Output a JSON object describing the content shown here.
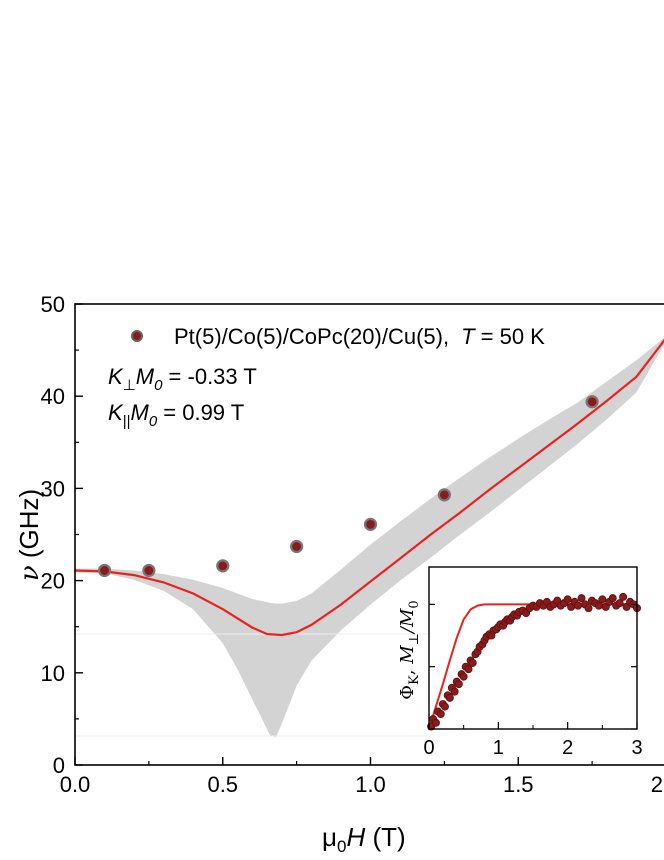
{
  "chart_data": [
    {
      "type": "scatter",
      "xlabel": {
        "main": "μ",
        "sub": "0",
        "italic": "H",
        "unit": " (T)"
      },
      "ylabel": {
        "italic": "ν",
        "unit": " (GHz)"
      },
      "xlim": [
        0.0,
        2.0
      ],
      "ylim": [
        0,
        50
      ],
      "xticks": [
        0.0,
        0.5,
        1.0,
        1.5,
        2.0
      ],
      "xtick_labels": [
        "0.0",
        "0.5",
        "1.0",
        "1.5",
        "2.0"
      ],
      "yticks": [
        0,
        10,
        20,
        30,
        40,
        50
      ],
      "ytick_labels": [
        "0",
        "10",
        "20",
        "30",
        "40",
        "50"
      ],
      "legend": {
        "sample": "Pt(5)/Co(5)/CoPc(20)/Cu(5),",
        "temp_label": "T",
        "temp_value": " = 50 K"
      },
      "annotations": {
        "kperp": {
          "k": "K",
          "sub": "⊥",
          "m": "M",
          "msub": "0",
          "value": " = -0.33 T"
        },
        "kpar": {
          "k": "K",
          "sub": "||",
          "m": "M",
          "msub": "0",
          "value": " = 0.99 T"
        }
      },
      "colors": {
        "points": "#8b1a1a",
        "fit": "#e8231e",
        "band": "#d3d3d3"
      },
      "series": [
        {
          "kind": "points",
          "x": [
            0.1,
            0.25,
            0.5,
            0.75,
            1.0,
            1.25,
            1.75
          ],
          "y": [
            21.1,
            21.1,
            21.6,
            23.7,
            26.1,
            29.3,
            39.4
          ]
        },
        {
          "kind": "fit",
          "x": [
            0.0,
            0.1,
            0.2,
            0.3,
            0.4,
            0.5,
            0.6,
            0.65,
            0.7,
            0.75,
            0.8,
            0.9,
            1.0,
            1.1,
            1.2,
            1.3,
            1.4,
            1.5,
            1.6,
            1.7,
            1.8,
            1.9,
            2.0
          ],
          "y": [
            21.1,
            21.0,
            20.6,
            19.8,
            18.6,
            16.9,
            14.9,
            14.2,
            14.1,
            14.4,
            15.2,
            17.4,
            19.9,
            22.4,
            24.9,
            27.3,
            29.8,
            32.2,
            34.6,
            37.0,
            39.5,
            42.1,
            46.3
          ]
        },
        {
          "kind": "band",
          "x": [
            0.0,
            0.1,
            0.2,
            0.3,
            0.4,
            0.5,
            0.55,
            0.6,
            0.63,
            0.66,
            0.68,
            0.7,
            0.75,
            0.8,
            0.9,
            1.0,
            1.1,
            1.2,
            1.3,
            1.4,
            1.5,
            1.6,
            1.7,
            1.8,
            1.9,
            2.0
          ],
          "upper": [
            21.3,
            21.3,
            21.1,
            20.7,
            20.1,
            19.2,
            18.6,
            18.0,
            17.8,
            17.6,
            17.5,
            17.5,
            17.8,
            18.6,
            21.2,
            23.9,
            26.4,
            28.8,
            31.1,
            33.3,
            35.4,
            37.4,
            39.3,
            41.6,
            43.9,
            46.5
          ],
          "lower": [
            20.9,
            20.8,
            20.1,
            18.9,
            16.9,
            13.2,
            10.4,
            7.1,
            5.2,
            3.2,
            3.0,
            4.5,
            8.6,
            11.3,
            14.6,
            17.4,
            20.0,
            22.4,
            24.9,
            27.3,
            29.8,
            32.3,
            34.8,
            37.5,
            40.4,
            46.0
          ]
        }
      ]
    },
    {
      "type": "scatter",
      "ylabel": {
        "phi": "Φ",
        "phisub": "K",
        "m": "M",
        "msub": "⊥",
        "tail": "/M",
        "tailsub": "0"
      },
      "xlim": [
        0,
        3
      ],
      "ylim": [
        0,
        1.3
      ],
      "xticks": [
        0,
        1,
        2,
        3
      ],
      "xtick_labels": [
        "0",
        "1",
        "2",
        "3"
      ],
      "colors": {
        "points": "#8b1a1a",
        "fit": "#e8231e"
      },
      "series": [
        {
          "kind": "fit",
          "x": [
            0,
            0.1,
            0.2,
            0.3,
            0.4,
            0.5,
            0.6,
            0.7,
            0.8,
            0.9,
            1.0,
            1.2,
            1.5,
            2.0,
            2.5,
            3.0
          ],
          "y": [
            0,
            0.18,
            0.36,
            0.55,
            0.73,
            0.88,
            0.96,
            0.99,
            1.0,
            1.0,
            1.0,
            1.0,
            1.0,
            1.0,
            1.0,
            1.0
          ]
        },
        {
          "kind": "points",
          "x": [
            0.03,
            0.06,
            0.1,
            0.13,
            0.17,
            0.2,
            0.23,
            0.27,
            0.3,
            0.33,
            0.37,
            0.4,
            0.43,
            0.47,
            0.5,
            0.53,
            0.57,
            0.6,
            0.63,
            0.67,
            0.7,
            0.73,
            0.77,
            0.8,
            0.83,
            0.87,
            0.9,
            0.93,
            0.97,
            1.0,
            1.03,
            1.07,
            1.1,
            1.13,
            1.17,
            1.2,
            1.23,
            1.27,
            1.3,
            1.35,
            1.4,
            1.45,
            1.5,
            1.55,
            1.6,
            1.65,
            1.7,
            1.75,
            1.8,
            1.85,
            1.9,
            1.95,
            2.0,
            2.05,
            2.1,
            2.15,
            2.2,
            2.25,
            2.3,
            2.35,
            2.4,
            2.45,
            2.5,
            2.55,
            2.6,
            2.65,
            2.7,
            2.75,
            2.8,
            2.85,
            2.9,
            2.95,
            3.0
          ],
          "y": [
            0.02,
            0.08,
            0.05,
            0.14,
            0.12,
            0.2,
            0.18,
            0.27,
            0.25,
            0.33,
            0.3,
            0.38,
            0.36,
            0.44,
            0.42,
            0.5,
            0.48,
            0.55,
            0.53,
            0.6,
            0.62,
            0.66,
            0.68,
            0.71,
            0.74,
            0.76,
            0.75,
            0.79,
            0.8,
            0.82,
            0.84,
            0.83,
            0.86,
            0.88,
            0.87,
            0.9,
            0.92,
            0.91,
            0.94,
            0.95,
            0.93,
            0.97,
            0.99,
            0.98,
            1.01,
            0.99,
            1.02,
            0.98,
            1.0,
            1.03,
            0.99,
            1.01,
            1.04,
            0.98,
            1.02,
            0.99,
            1.05,
            1.0,
            0.97,
            1.03,
            1.01,
            0.99,
            1.04,
            0.98,
            1.02,
            1.05,
            0.99,
            1.01,
            1.06,
            0.98,
            1.02,
            1.0,
            0.97
          ]
        }
      ]
    }
  ]
}
